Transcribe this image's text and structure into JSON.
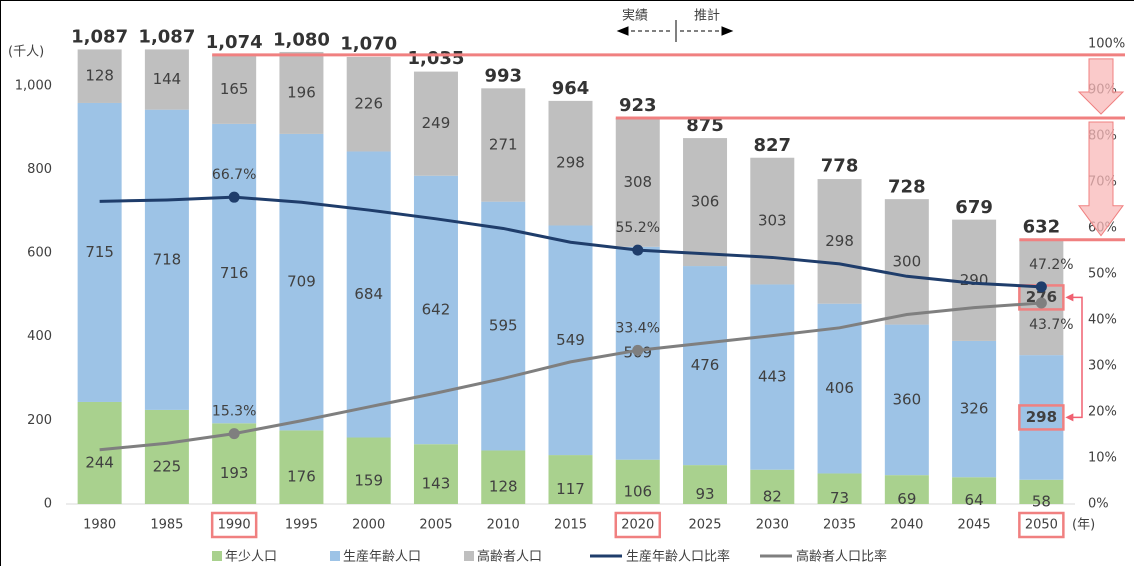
{
  "chart_data": {
    "type": "bar",
    "stacked": true,
    "y_label": "(千人)",
    "x_unit": "(年)",
    "annotations": [
      "実績",
      "推計"
    ],
    "categories": [
      "1980",
      "1985",
      "1990",
      "1995",
      "2000",
      "2005",
      "2010",
      "2015",
      "2020",
      "2025",
      "2030",
      "2035",
      "2040",
      "2045",
      "2050"
    ],
    "series": [
      {
        "name": "年少人口",
        "color": "#a9d18e",
        "values": [
          244,
          225,
          193,
          176,
          159,
          143,
          128,
          117,
          106,
          93,
          82,
          73,
          69,
          64,
          58
        ]
      },
      {
        "name": "生産年齢人口",
        "color": "#9dc3e6",
        "values": [
          715,
          718,
          716,
          709,
          684,
          642,
          595,
          549,
          509,
          476,
          443,
          406,
          360,
          326,
          298
        ]
      },
      {
        "name": "高齢者人口",
        "color": "#bfbfbf",
        "values": [
          128,
          144,
          165,
          196,
          226,
          249,
          271,
          298,
          308,
          306,
          303,
          298,
          300,
          290,
          276
        ]
      },
      {
        "name": "生産年齢人口比率",
        "type": "line",
        "axis": "y2",
        "color": "#1f3d6b",
        "values": [
          65.8,
          66.1,
          66.7,
          65.6,
          63.9,
          62.0,
          59.9,
          56.9,
          55.2,
          54.4,
          53.6,
          52.2,
          49.5,
          48.0,
          47.2
        ],
        "value_labels": [
          null,
          null,
          "66.7%",
          null,
          null,
          null,
          null,
          null,
          "55.2%",
          null,
          null,
          null,
          null,
          null,
          "47.2%"
        ]
      },
      {
        "name": "高齢者人口比率",
        "type": "line",
        "axis": "y2",
        "color": "#7f7f7f",
        "values": [
          11.8,
          13.2,
          15.3,
          18.1,
          21.1,
          24.1,
          27.3,
          30.9,
          33.4,
          35.0,
          36.6,
          38.3,
          41.2,
          42.7,
          43.7
        ],
        "value_labels": [
          null,
          null,
          "15.3%",
          null,
          null,
          null,
          null,
          null,
          "33.4%",
          null,
          null,
          null,
          null,
          null,
          "43.7%"
        ]
      }
    ],
    "totals": [
      1087,
      1087,
      1074,
      1080,
      1070,
      1035,
      993,
      964,
      923,
      875,
      827,
      778,
      728,
      679,
      632
    ],
    "total_labels": [
      "1,087",
      "1,087",
      "1,074",
      "1,080",
      "1,070",
      "1,035",
      "993",
      "964",
      "923",
      "875",
      "827",
      "778",
      "728",
      "679",
      "632"
    ],
    "ylim": [
      0,
      1100
    ],
    "yticks": [
      0,
      200,
      400,
      600,
      800,
      {
        "value": 1000,
        "label": "1,000"
      }
    ],
    "y2lim": [
      0,
      100
    ],
    "y2ticks": [
      {
        "value": 0,
        "label": "0%"
      },
      {
        "value": 10,
        "label": "10%"
      },
      {
        "value": 20,
        "label": "20%"
      },
      {
        "value": 30,
        "label": "30%"
      },
      {
        "value": 40,
        "label": "40%"
      },
      {
        "value": 50,
        "label": "50%"
      },
      {
        "value": 60,
        "label": "60%"
      },
      {
        "value": 70,
        "label": "70%"
      },
      {
        "value": 80,
        "label": "80%"
      },
      {
        "value": 90,
        "label": "90%"
      },
      {
        "value": 100,
        "label": "100%"
      }
    ],
    "legend": "bottom"
  }
}
